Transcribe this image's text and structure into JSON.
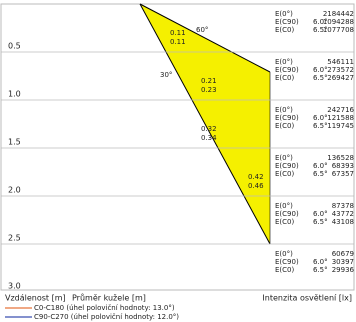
{
  "header": {
    "angle_outer": "60°",
    "angle_inner": "30°"
  },
  "rows": [
    {
      "distance": "0.5",
      "diameters": [
        "0.11",
        "0.11"
      ],
      "labels": [
        "E(0°)",
        "E(C90)",
        "E(C0)"
      ],
      "angles": [
        "6.0°",
        "6.5°"
      ],
      "lux": [
        "2184442",
        "1094288",
        "1077708"
      ]
    },
    {
      "distance": "1.0",
      "diameters": [
        "0.21",
        "0.23"
      ],
      "labels": [
        "E(0°)",
        "E(C90)",
        "E(C0)"
      ],
      "angles": [
        "6.0°",
        "6.5°"
      ],
      "lux": [
        "546111",
        "273572",
        "269427"
      ]
    },
    {
      "distance": "1.5",
      "diameters": [
        "0.32",
        "0.34"
      ],
      "labels": [
        "E(0°)",
        "E(C90)",
        "E(C0)"
      ],
      "angles": [
        "6.0°",
        "6.5°"
      ],
      "lux": [
        "242716",
        "121588",
        "119745"
      ]
    },
    {
      "distance": "2.0",
      "diameters": [
        "0.42",
        "0.46"
      ],
      "labels": [
        "E(0°)",
        "E(C90)",
        "E(C0)"
      ],
      "angles": [
        "6.0°",
        "6.5°"
      ],
      "lux": [
        "136528",
        "68393",
        "67357"
      ]
    },
    {
      "distance": "2.5",
      "diameters": [],
      "labels": [
        "E(0°)",
        "E(C90)",
        "E(C0)"
      ],
      "angles": [
        "6.0°",
        "6.5°"
      ],
      "lux": [
        "87378",
        "43772",
        "43108"
      ]
    },
    {
      "distance": "3.0",
      "diameters": [],
      "labels": [
        "E(0°)",
        "E(C90)",
        "E(C0)"
      ],
      "angles": [
        "6.0°",
        "6.5°"
      ],
      "lux": [
        "60679",
        "30397",
        "29936"
      ]
    }
  ],
  "footer": {
    "distance_label": "Vzdálenost [m]",
    "diameter_label": "Průměr kužele [m]",
    "illuminance_label": "Intenzita osvětlení [lx]"
  },
  "legend": [
    {
      "name": "C0-C180 (úhel poloviční hodnoty: 13.0°)",
      "color": "#e8743b"
    },
    {
      "name": "C90-C270 (úhel poloviční hodnoty: 12.0°)",
      "color": "#3b4fb0"
    }
  ]
}
